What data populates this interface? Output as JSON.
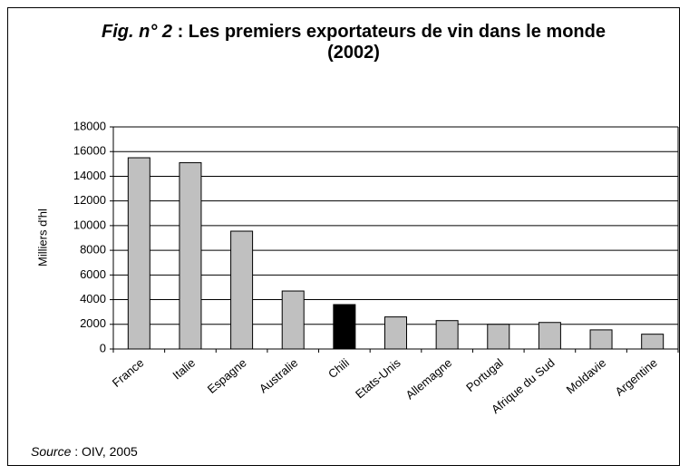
{
  "chart_data": {
    "type": "bar",
    "title_prefix": "Fig. n° 2",
    "title": " : Les premiers exportateurs de vin dans le monde (2002)",
    "y_label": "Milliers d'hl",
    "source_prefix": "Source",
    "source": " : OIV, 2005",
    "categories": [
      "France",
      "Italie",
      "Espagne",
      "Australie",
      "Chili",
      "Etats-Unis",
      "Allemagne",
      "Portugal",
      "Afrique du Sud",
      "Moldavie",
      "Argentine"
    ],
    "values": [
      15500,
      15100,
      9550,
      4700,
      3600,
      2600,
      2300,
      2000,
      2150,
      1550,
      1200
    ],
    "colors": [
      "#c0c0c0",
      "#c0c0c0",
      "#c0c0c0",
      "#c0c0c0",
      "#000000",
      "#c0c0c0",
      "#c0c0c0",
      "#c0c0c0",
      "#c0c0c0",
      "#c0c0c0",
      "#c0c0c0"
    ],
    "ylim": [
      0,
      18000
    ],
    "yticks": [
      0,
      2000,
      4000,
      6000,
      8000,
      10000,
      12000,
      14000,
      16000,
      18000
    ],
    "grid": true
  }
}
